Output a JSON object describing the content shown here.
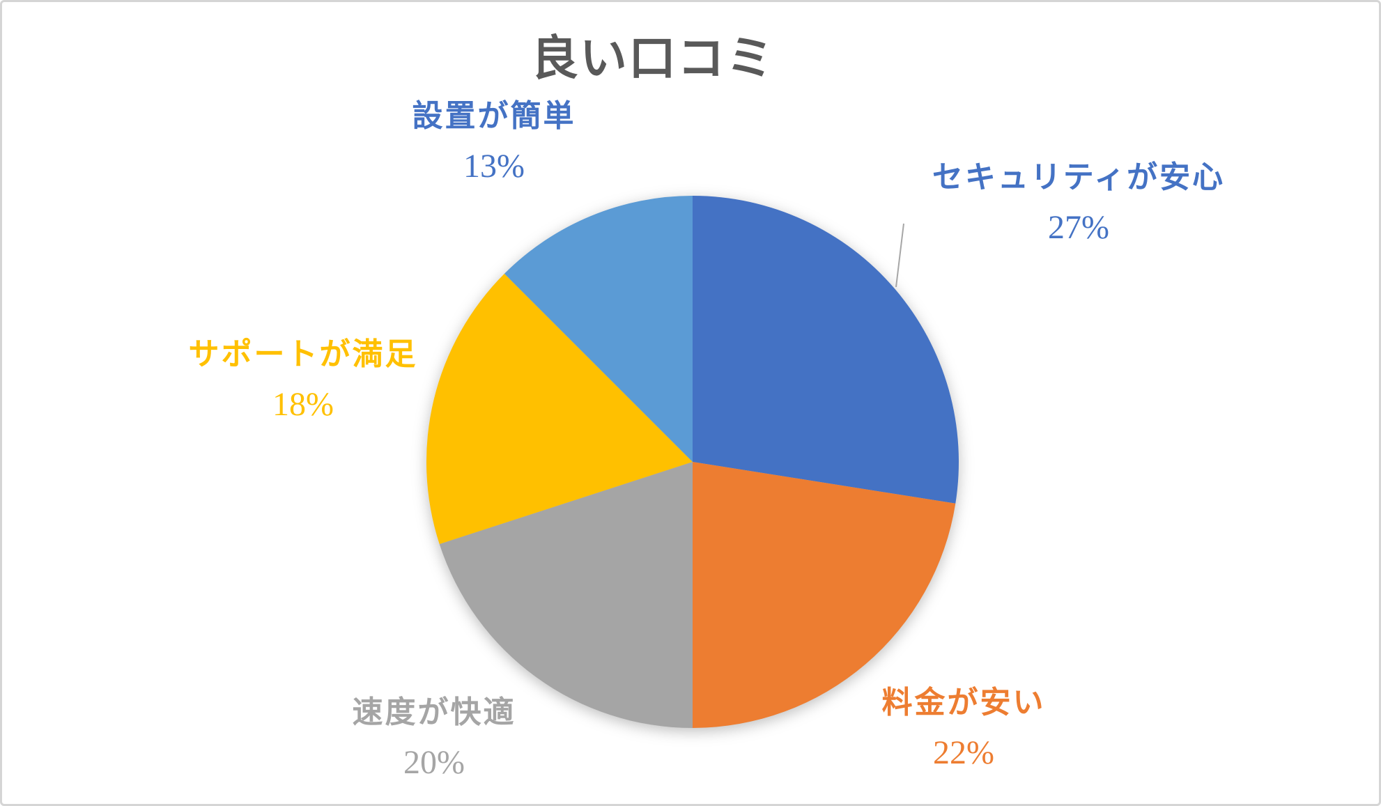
{
  "chart_data": {
    "type": "pie",
    "title": "良い口コミ",
    "title_color": "#595959",
    "legend": "none",
    "start_angle_deg": 0,
    "direction": "clockwise",
    "canvas_border_color": "#d5d5d5",
    "leader_line_color": "#a6a6a6",
    "categories": [
      "セキュリティが安心",
      "料金が安い",
      "速度が快適",
      "サポートが満足",
      "設置が簡単"
    ],
    "values": [
      27,
      22,
      20,
      18,
      13
    ],
    "slices": [
      {
        "label": "セキュリティが安心",
        "value": 27,
        "pct_label": "27%",
        "arc_pct": 27.5,
        "color": "#4472C4",
        "label_color": "#4472C4"
      },
      {
        "label": "料金が安い",
        "value": 22,
        "pct_label": "22%",
        "arc_pct": 22.5,
        "color": "#ED7D31",
        "label_color": "#ED7D31"
      },
      {
        "label": "速度が快適",
        "value": 20,
        "pct_label": "20%",
        "arc_pct": 20.0,
        "color": "#A5A5A5",
        "label_color": "#A5A5A5"
      },
      {
        "label": "サポートが満足",
        "value": 18,
        "pct_label": "18%",
        "arc_pct": 17.5,
        "color": "#FFC000",
        "label_color": "#FFC000"
      },
      {
        "label": "設置が簡単",
        "value": 13,
        "pct_label": "13%",
        "arc_pct": 12.5,
        "color": "#5B9BD5",
        "label_color": "#4472C4"
      }
    ]
  }
}
